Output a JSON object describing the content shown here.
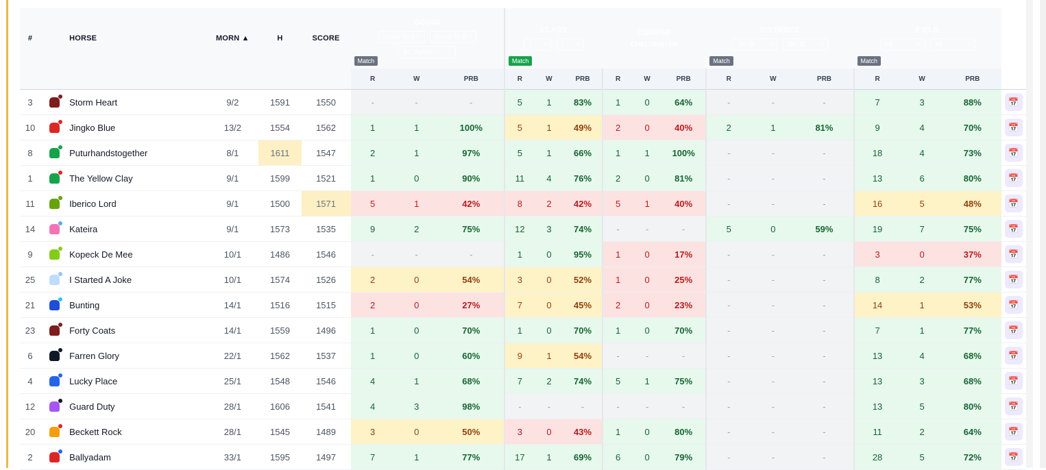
{
  "headers": {
    "num": "#",
    "horse": "HORSE",
    "morn": "MORN ▲",
    "h": "H",
    "score": "SCORE"
  },
  "groups": {
    "going": {
      "title": "GOING",
      "sel1": "Good To S",
      "sel2": "Good To S",
      "sel3": "All Surfaces",
      "badge": "Match"
    },
    "class": {
      "title": "CLASS",
      "sel1": "1",
      "sel2": "1",
      "badge": "Match"
    },
    "course": {
      "title": "COURSE",
      "subtitle": "CHELTENHAM"
    },
    "distance": {
      "title": "DISTANCE",
      "sel1": "3m-3f",
      "sel2": "3m-3f",
      "badge": "Match"
    },
    "field": {
      "title": "FIELD",
      "sel1": "All",
      "sel2": "All",
      "badge": "Match"
    },
    "dash": "-"
  },
  "subheaders": {
    "r": "R",
    "w": "W",
    "prb": "PRB"
  },
  "colors": {
    "going": "#3b82f6",
    "class": "#8b5cf6",
    "course": "#10b981",
    "distance": "#f59e0b",
    "field": "#ef4444"
  },
  "rows": [
    {
      "num": "3",
      "name": "Storm Heart",
      "morn": "9/2",
      "h": "1591",
      "score": "1550",
      "hl": "",
      "silk": [
        "#7f1d1d",
        "#7f1d1d"
      ],
      "going": [
        "-",
        "-",
        "-",
        "n"
      ],
      "class": [
        "5",
        "1",
        "83%",
        "g"
      ],
      "course": [
        "1",
        "0",
        "64%",
        "g"
      ],
      "dist": [
        "-",
        "-",
        "-",
        "n"
      ],
      "field": [
        "7",
        "3",
        "88%",
        "g"
      ]
    },
    {
      "num": "10",
      "name": "Jingko Blue",
      "morn": "13/2",
      "h": "1554",
      "score": "1562",
      "hl": "",
      "silk": [
        "#dc2626",
        "#dc2626"
      ],
      "going": [
        "1",
        "1",
        "100%",
        "g"
      ],
      "class": [
        "5",
        "1",
        "49%",
        "y"
      ],
      "course": [
        "2",
        "0",
        "40%",
        "r"
      ],
      "dist": [
        "2",
        "1",
        "81%",
        "g"
      ],
      "field": [
        "9",
        "4",
        "70%",
        "g"
      ]
    },
    {
      "num": "8",
      "name": "Puturhandstogether",
      "morn": "8/1",
      "h": "1611",
      "score": "1547",
      "hl": "h",
      "silk": [
        "#16a34a",
        "#16a34a"
      ],
      "going": [
        "2",
        "1",
        "97%",
        "g"
      ],
      "class": [
        "5",
        "1",
        "66%",
        "g"
      ],
      "course": [
        "1",
        "1",
        "100%",
        "g"
      ],
      "dist": [
        "-",
        "-",
        "-",
        "n"
      ],
      "field": [
        "18",
        "4",
        "73%",
        "g"
      ]
    },
    {
      "num": "1",
      "name": "The Yellow Clay",
      "morn": "9/1",
      "h": "1599",
      "score": "1521",
      "hl": "",
      "silk": [
        "#16a34a",
        "#dc2626"
      ],
      "going": [
        "1",
        "0",
        "90%",
        "g"
      ],
      "class": [
        "11",
        "4",
        "76%",
        "g"
      ],
      "course": [
        "2",
        "0",
        "81%",
        "g"
      ],
      "dist": [
        "-",
        "-",
        "-",
        "n"
      ],
      "field": [
        "13",
        "6",
        "80%",
        "g"
      ]
    },
    {
      "num": "11",
      "name": "Iberico Lord",
      "morn": "9/1",
      "h": "1500",
      "score": "1571",
      "hl": "s",
      "silk": [
        "#65a30d",
        "#65a30d"
      ],
      "going": [
        "5",
        "1",
        "42%",
        "r"
      ],
      "class": [
        "8",
        "2",
        "42%",
        "r"
      ],
      "course": [
        "5",
        "1",
        "40%",
        "r"
      ],
      "dist": [
        "-",
        "-",
        "-",
        "n"
      ],
      "field": [
        "16",
        "5",
        "48%",
        "y"
      ]
    },
    {
      "num": "14",
      "name": "Kateira",
      "morn": "9/1",
      "h": "1573",
      "score": "1535",
      "hl": "",
      "silk": [
        "#f472b6",
        "#60a5fa"
      ],
      "going": [
        "9",
        "2",
        "75%",
        "g"
      ],
      "class": [
        "12",
        "3",
        "74%",
        "g"
      ],
      "course": [
        "-",
        "-",
        "-",
        "n"
      ],
      "dist": [
        "5",
        "0",
        "59%",
        "g"
      ],
      "field": [
        "19",
        "7",
        "75%",
        "g"
      ]
    },
    {
      "num": "9",
      "name": "Kopeck De Mee",
      "morn": "10/1",
      "h": "1486",
      "score": "1546",
      "hl": "",
      "silk": [
        "#84cc16",
        "#84cc16"
      ],
      "going": [
        "-",
        "-",
        "-",
        "n"
      ],
      "class": [
        "1",
        "0",
        "95%",
        "g"
      ],
      "course": [
        "1",
        "0",
        "17%",
        "r"
      ],
      "dist": [
        "-",
        "-",
        "-",
        "n"
      ],
      "field": [
        "3",
        "0",
        "37%",
        "r"
      ]
    },
    {
      "num": "25",
      "name": "I Started A Joke",
      "morn": "10/1",
      "h": "1574",
      "score": "1526",
      "hl": "",
      "silk": [
        "#bfdbfe",
        "#93c5fd"
      ],
      "going": [
        "2",
        "0",
        "54%",
        "y"
      ],
      "class": [
        "3",
        "0",
        "52%",
        "y"
      ],
      "course": [
        "1",
        "0",
        "25%",
        "r"
      ],
      "dist": [
        "-",
        "-",
        "-",
        "n"
      ],
      "field": [
        "8",
        "2",
        "77%",
        "g"
      ]
    },
    {
      "num": "21",
      "name": "Bunting",
      "morn": "14/1",
      "h": "1516",
      "score": "1515",
      "hl": "",
      "silk": [
        "#1d4ed8",
        "#38bdf8"
      ],
      "going": [
        "2",
        "0",
        "27%",
        "r"
      ],
      "class": [
        "7",
        "0",
        "45%",
        "y"
      ],
      "course": [
        "2",
        "0",
        "23%",
        "r"
      ],
      "dist": [
        "-",
        "-",
        "-",
        "n"
      ],
      "field": [
        "14",
        "1",
        "53%",
        "y"
      ]
    },
    {
      "num": "23",
      "name": "Forty Coats",
      "morn": "14/1",
      "h": "1559",
      "score": "1496",
      "hl": "",
      "silk": [
        "#7f1d1d",
        "#7f1d1d"
      ],
      "going": [
        "1",
        "0",
        "70%",
        "g"
      ],
      "class": [
        "1",
        "0",
        "70%",
        "g"
      ],
      "course": [
        "1",
        "0",
        "70%",
        "g"
      ],
      "dist": [
        "-",
        "-",
        "-",
        "n"
      ],
      "field": [
        "7",
        "1",
        "77%",
        "g"
      ]
    },
    {
      "num": "6",
      "name": "Farren Glory",
      "morn": "22/1",
      "h": "1562",
      "score": "1537",
      "hl": "",
      "silk": [
        "#111827",
        "#111827"
      ],
      "going": [
        "1",
        "0",
        "60%",
        "g"
      ],
      "class": [
        "9",
        "1",
        "54%",
        "y"
      ],
      "course": [
        "-",
        "-",
        "-",
        "n"
      ],
      "dist": [
        "-",
        "-",
        "-",
        "n"
      ],
      "field": [
        "13",
        "4",
        "68%",
        "g"
      ]
    },
    {
      "num": "4",
      "name": "Lucky Place",
      "morn": "25/1",
      "h": "1548",
      "score": "1546",
      "hl": "",
      "silk": [
        "#2563eb",
        "#2563eb"
      ],
      "going": [
        "4",
        "1",
        "68%",
        "g"
      ],
      "class": [
        "7",
        "2",
        "74%",
        "g"
      ],
      "course": [
        "5",
        "1",
        "75%",
        "g"
      ],
      "dist": [
        "-",
        "-",
        "-",
        "n"
      ],
      "field": [
        "13",
        "3",
        "68%",
        "g"
      ]
    },
    {
      "num": "12",
      "name": "Guard Duty",
      "morn": "28/1",
      "h": "1606",
      "score": "1541",
      "hl": "",
      "silk": [
        "#a855f7",
        "#111827"
      ],
      "going": [
        "4",
        "3",
        "98%",
        "g"
      ],
      "class": [
        "-",
        "-",
        "-",
        "n"
      ],
      "course": [
        "-",
        "-",
        "-",
        "n"
      ],
      "dist": [
        "-",
        "-",
        "-",
        "n"
      ],
      "field": [
        "13",
        "5",
        "80%",
        "g"
      ]
    },
    {
      "num": "20",
      "name": "Beckett Rock",
      "morn": "28/1",
      "h": "1545",
      "score": "1489",
      "hl": "",
      "silk": [
        "#f59e0b",
        "#dc2626"
      ],
      "going": [
        "3",
        "0",
        "50%",
        "y"
      ],
      "class": [
        "3",
        "0",
        "43%",
        "r"
      ],
      "course": [
        "1",
        "0",
        "80%",
        "g"
      ],
      "dist": [
        "-",
        "-",
        "-",
        "n"
      ],
      "field": [
        "11",
        "2",
        "64%",
        "g"
      ]
    },
    {
      "num": "2",
      "name": "Ballyadam",
      "morn": "33/1",
      "h": "1595",
      "score": "1497",
      "hl": "",
      "silk": [
        "#dc2626",
        "#2563eb"
      ],
      "going": [
        "7",
        "1",
        "77%",
        "g"
      ],
      "class": [
        "17",
        "1",
        "69%",
        "g"
      ],
      "course": [
        "6",
        "0",
        "79%",
        "g"
      ],
      "dist": [
        "-",
        "-",
        "-",
        "n"
      ],
      "field": [
        "28",
        "5",
        "72%",
        "g"
      ]
    }
  ]
}
